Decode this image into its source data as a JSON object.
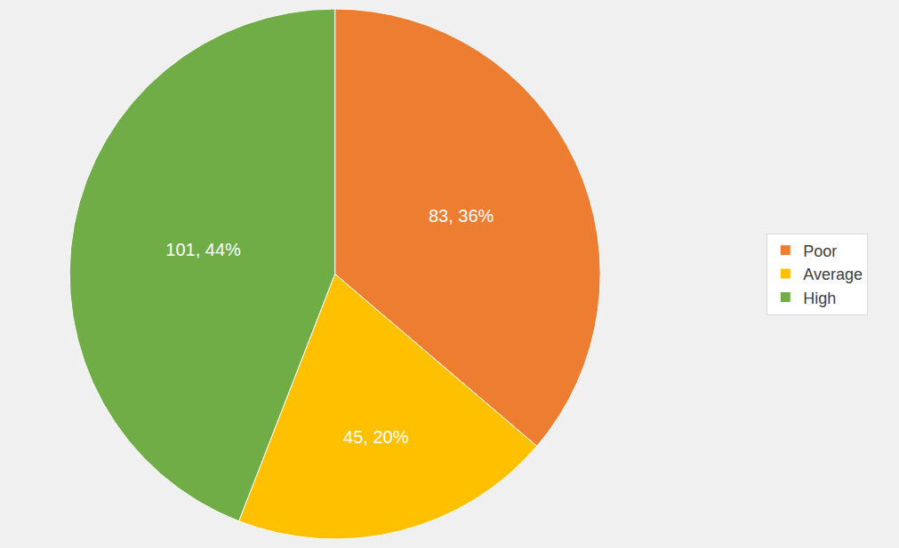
{
  "chart_data": {
    "type": "pie",
    "categories": [
      "Poor",
      "Average",
      "High"
    ],
    "values": [
      83,
      45,
      101
    ],
    "value_labels": [
      "83, 36%",
      "45, 20%",
      "101, 44%"
    ],
    "colors": [
      "#ed7d31",
      "#ffc000",
      "#70ad47"
    ],
    "data_labels": true,
    "legend": "right"
  }
}
